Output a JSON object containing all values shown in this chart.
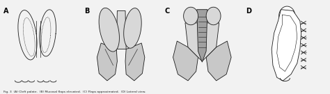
{
  "figure_labels": [
    "A",
    "B",
    "C",
    "D"
  ],
  "bg_color": "#f2f2f2",
  "outline_color": "#1a1a1a",
  "light_gray": "#c8c8c8",
  "mid_gray": "#a0a0a0",
  "dot_fill": "#d8d8d8",
  "white": "#ffffff",
  "label_fontsize": 7,
  "caption_fontsize": 3.2,
  "lw": 0.6
}
